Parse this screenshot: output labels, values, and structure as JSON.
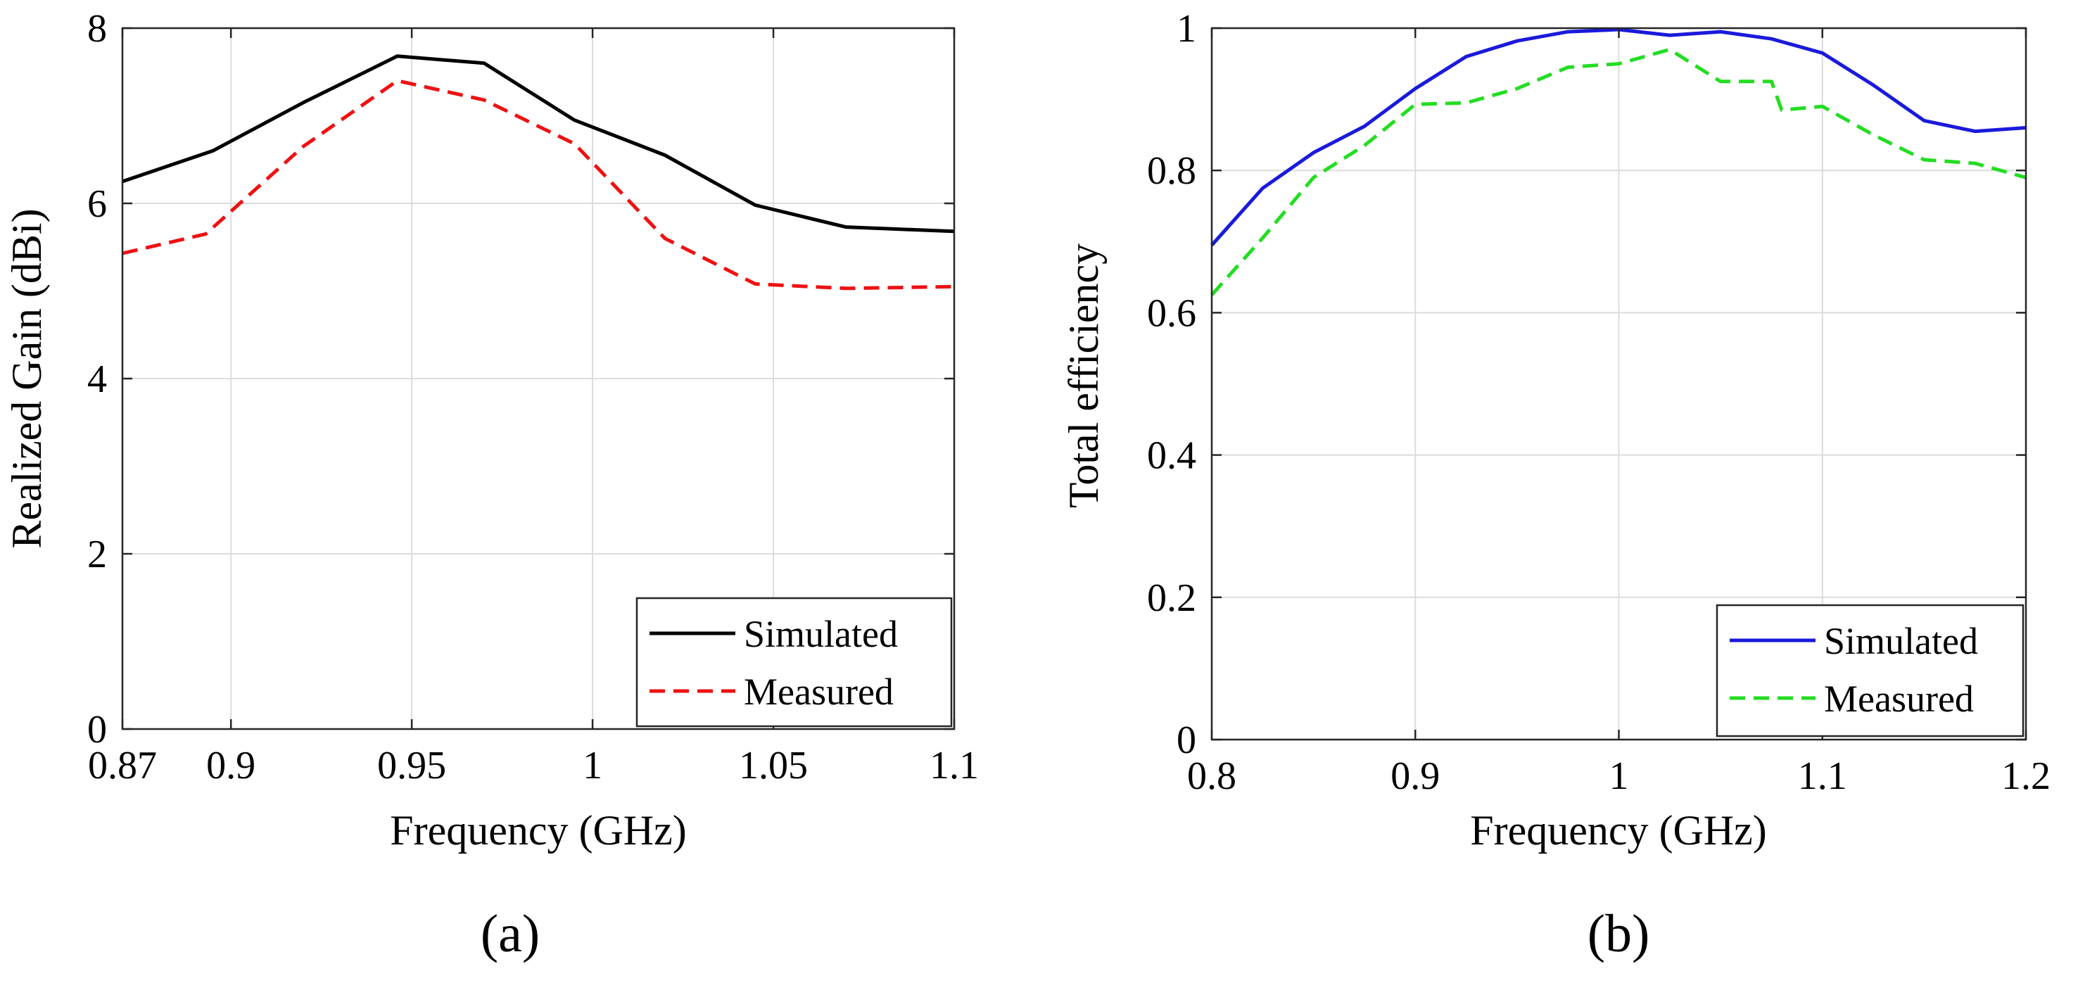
{
  "chart_data": [
    {
      "id": "a",
      "type": "line",
      "caption": "(a)",
      "xlabel": "Frequency (GHz)",
      "ylabel": "Realized Gain (dBi)",
      "xlim": [
        0.87,
        1.1
      ],
      "ylim": [
        0,
        8
      ],
      "xticks": [
        {
          "value": 0.87,
          "label": "0.87"
        },
        {
          "value": 0.9,
          "label": "0.9"
        },
        {
          "value": 0.95,
          "label": "0.95"
        },
        {
          "value": 1.0,
          "label": "1"
        },
        {
          "value": 1.05,
          "label": "1.05"
        },
        {
          "value": 1.1,
          "label": "1.1"
        }
      ],
      "yticks": [
        {
          "value": 0,
          "label": "0"
        },
        {
          "value": 2,
          "label": "2"
        },
        {
          "value": 4,
          "label": "4"
        },
        {
          "value": 6,
          "label": "6"
        },
        {
          "value": 8,
          "label": "8"
        }
      ],
      "grid": true,
      "legend_position": "bottom-right",
      "series": [
        {
          "name": "Simulated",
          "color": "#000000",
          "dash": "solid",
          "x": [
            0.87,
            0.895,
            0.92,
            0.946,
            0.97,
            0.995,
            1.02,
            1.045,
            1.07,
            1.1
          ],
          "y": [
            6.25,
            6.6,
            7.15,
            7.68,
            7.6,
            6.95,
            6.55,
            5.98,
            5.73,
            5.68
          ]
        },
        {
          "name": "Measured",
          "color": "#ee1111",
          "dash": "dashed",
          "x": [
            0.87,
            0.893,
            0.92,
            0.946,
            0.97,
            0.995,
            1.02,
            1.045,
            1.07,
            1.1
          ],
          "y": [
            5.43,
            5.65,
            6.65,
            7.4,
            7.18,
            6.68,
            5.6,
            5.08,
            5.03,
            5.05
          ]
        }
      ]
    },
    {
      "id": "b",
      "type": "line",
      "caption": "(b)",
      "xlabel": "Frequency (GHz)",
      "ylabel": "Total efficiency",
      "xlim": [
        0.8,
        1.2
      ],
      "ylim": [
        0,
        1
      ],
      "xticks": [
        {
          "value": 0.8,
          "label": "0.8"
        },
        {
          "value": 0.9,
          "label": "0.9"
        },
        {
          "value": 1.0,
          "label": "1"
        },
        {
          "value": 1.1,
          "label": "1.1"
        },
        {
          "value": 1.2,
          "label": "1.2"
        }
      ],
      "yticks": [
        {
          "value": 0,
          "label": "0"
        },
        {
          "value": 0.2,
          "label": "0.2"
        },
        {
          "value": 0.4,
          "label": "0.4"
        },
        {
          "value": 0.6,
          "label": "0.6"
        },
        {
          "value": 0.8,
          "label": "0.8"
        },
        {
          "value": 1.0,
          "label": "1"
        }
      ],
      "grid": true,
      "legend_position": "bottom-right",
      "series": [
        {
          "name": "Simulated",
          "color": "#1a1adb",
          "dash": "solid",
          "x": [
            0.8,
            0.825,
            0.85,
            0.875,
            0.9,
            0.925,
            0.95,
            0.975,
            1.0,
            1.025,
            1.05,
            1.075,
            1.1,
            1.125,
            1.15,
            1.175,
            1.2
          ],
          "y": [
            0.695,
            0.775,
            0.825,
            0.862,
            0.915,
            0.96,
            0.982,
            0.995,
            0.998,
            0.99,
            0.995,
            0.985,
            0.965,
            0.92,
            0.87,
            0.855,
            0.86
          ]
        },
        {
          "name": "Measured",
          "color": "#22dd22",
          "dash": "dashed",
          "x": [
            0.8,
            0.825,
            0.85,
            0.875,
            0.9,
            0.925,
            0.95,
            0.975,
            1.0,
            1.025,
            1.05,
            1.075,
            1.08,
            1.1,
            1.125,
            1.15,
            1.175,
            1.2
          ],
          "y": [
            0.625,
            0.705,
            0.79,
            0.835,
            0.893,
            0.895,
            0.915,
            0.945,
            0.95,
            0.97,
            0.925,
            0.925,
            0.885,
            0.89,
            0.85,
            0.815,
            0.81,
            0.79
          ]
        }
      ]
    }
  ]
}
